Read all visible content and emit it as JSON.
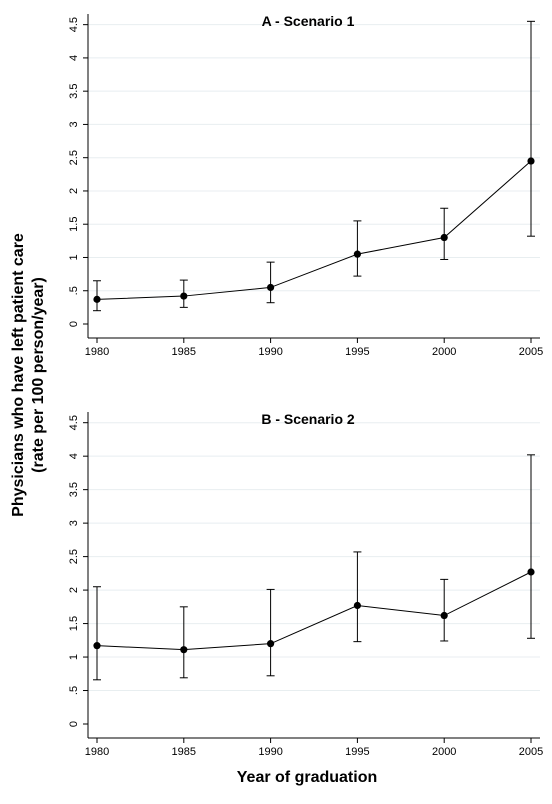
{
  "figure": {
    "ylabel_line1": "Physicians who have left patient care",
    "ylabel_line2": "(rate per 100 person/year)",
    "xlabel": "Year of graduation"
  },
  "chart_data": [
    {
      "type": "line",
      "title": "A - Scenario 1",
      "x": [
        1980,
        1985,
        1990,
        1995,
        2000,
        2005
      ],
      "x_ticks": [
        "1980",
        "1985",
        "1990",
        "1995",
        "2000",
        "2005"
      ],
      "y_ticks": [
        "0",
        ".5",
        "1",
        "1.5",
        "2",
        "2.5",
        "3",
        "3.5",
        "4",
        "4.5"
      ],
      "y_tick_values": [
        0,
        0.5,
        1,
        1.5,
        2,
        2.5,
        3,
        3.5,
        4,
        4.5
      ],
      "ylim": [
        0,
        4.6
      ],
      "grid": true,
      "series": [
        {
          "values": [
            0.37,
            0.42,
            0.55,
            1.05,
            1.3,
            2.45
          ],
          "ci_low": [
            0.2,
            0.25,
            0.32,
            0.72,
            0.97,
            1.32
          ],
          "ci_high": [
            0.65,
            0.66,
            0.93,
            1.55,
            1.74,
            4.55
          ]
        }
      ]
    },
    {
      "type": "line",
      "title": "B - Scenario 2",
      "x": [
        1980,
        1985,
        1990,
        1995,
        2000,
        2005
      ],
      "x_ticks": [
        "1980",
        "1985",
        "1990",
        "1995",
        "2000",
        "2005"
      ],
      "y_ticks": [
        "0",
        ".5",
        "1",
        "1.5",
        "2",
        "2.5",
        "3",
        "3.5",
        "4",
        "4.5"
      ],
      "y_tick_values": [
        0,
        0.5,
        1,
        1.5,
        2,
        2.5,
        3,
        3.5,
        4,
        4.5
      ],
      "ylim": [
        0,
        4.6
      ],
      "grid": true,
      "series": [
        {
          "values": [
            1.17,
            1.11,
            1.2,
            1.77,
            1.62,
            2.27
          ],
          "ci_low": [
            0.66,
            0.69,
            0.72,
            1.23,
            1.24,
            1.28
          ],
          "ci_high": [
            2.05,
            1.75,
            2.01,
            2.57,
            2.16,
            4.02
          ]
        }
      ]
    }
  ]
}
